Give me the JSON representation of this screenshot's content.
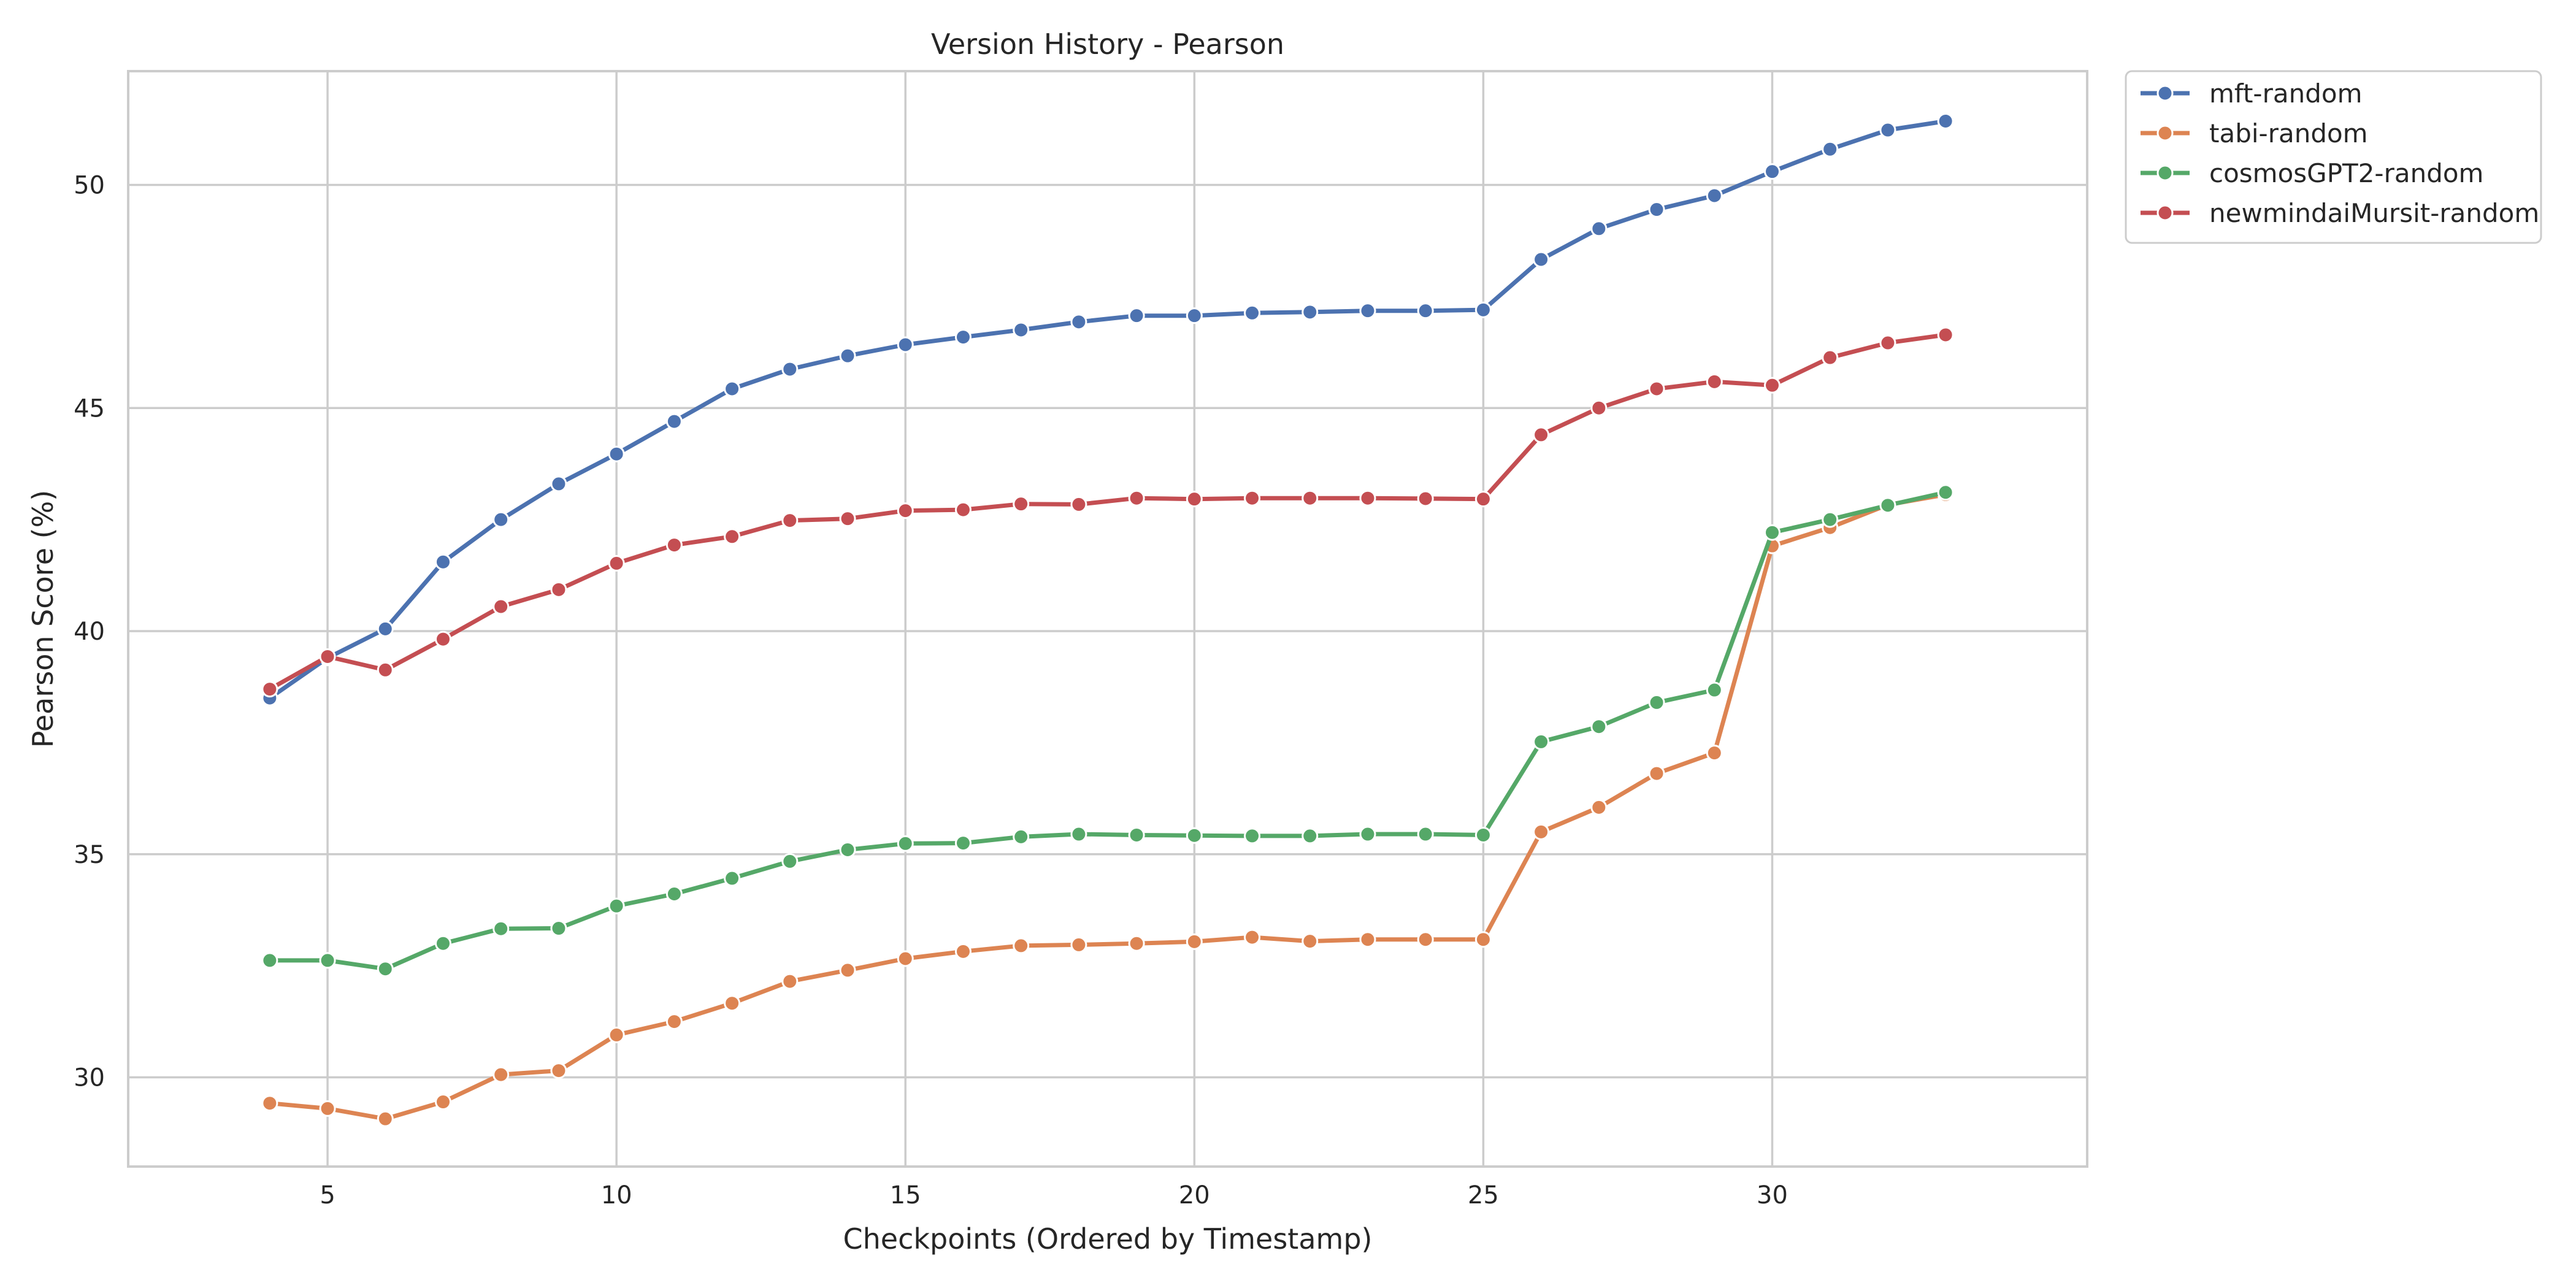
{
  "chart_data": {
    "type": "line",
    "title": "Version History - Pearson",
    "xlabel": "Checkpoints (Ordered by Timestamp)",
    "ylabel": "Pearson Score (%)",
    "xlim": [
      1.55,
      35.45
    ],
    "ylim": [
      28.0,
      52.55
    ],
    "xticks": [
      5,
      10,
      15,
      20,
      25,
      30
    ],
    "yticks": [
      30,
      35,
      40,
      45,
      50
    ],
    "grid": true,
    "legend_position": "outside-top-right",
    "x": [
      4,
      5,
      6,
      7,
      8,
      9,
      10,
      11,
      12,
      13,
      14,
      15,
      16,
      17,
      18,
      19,
      20,
      21,
      22,
      23,
      24,
      25,
      26,
      27,
      28,
      29,
      30,
      31,
      32,
      33
    ],
    "series": [
      {
        "name": "mft-random",
        "color": "#4c72b0",
        "values": [
          38.5,
          39.4,
          40.05,
          41.55,
          42.5,
          43.3,
          43.97,
          44.7,
          45.43,
          45.87,
          46.17,
          46.42,
          46.59,
          46.75,
          46.93,
          47.07,
          47.07,
          47.13,
          47.15,
          47.18,
          47.18,
          47.2,
          48.33,
          49.02,
          49.45,
          49.76,
          50.3,
          50.8,
          51.23,
          51.43
        ]
      },
      {
        "name": "tabi-random",
        "color": "#dd8452",
        "values": [
          29.42,
          29.3,
          29.07,
          29.45,
          30.06,
          30.15,
          30.95,
          31.25,
          31.66,
          32.15,
          32.4,
          32.66,
          32.82,
          32.95,
          32.97,
          33.0,
          33.04,
          33.14,
          33.05,
          33.09,
          33.09,
          33.09,
          35.5,
          36.05,
          36.81,
          37.27,
          41.91,
          42.32,
          42.83,
          43.06
        ]
      },
      {
        "name": "cosmosGPT2-random",
        "color": "#55a868",
        "values": [
          32.62,
          32.62,
          32.43,
          33.0,
          33.33,
          33.34,
          33.84,
          34.11,
          34.46,
          34.84,
          35.1,
          35.24,
          35.25,
          35.39,
          35.45,
          35.43,
          35.42,
          35.41,
          35.41,
          35.45,
          35.45,
          35.43,
          37.52,
          37.86,
          38.4,
          38.68,
          42.21,
          42.5,
          42.82,
          43.11
        ]
      },
      {
        "name": "newmindaiMursit-random",
        "color": "#c44e52",
        "values": [
          38.7,
          39.43,
          39.13,
          39.82,
          40.55,
          40.93,
          41.52,
          41.93,
          42.12,
          42.48,
          42.52,
          42.7,
          42.72,
          42.85,
          42.84,
          42.98,
          42.96,
          42.98,
          42.98,
          42.98,
          42.97,
          42.96,
          44.4,
          45.0,
          45.43,
          45.59,
          45.51,
          46.13,
          46.46,
          46.64
        ]
      }
    ]
  }
}
